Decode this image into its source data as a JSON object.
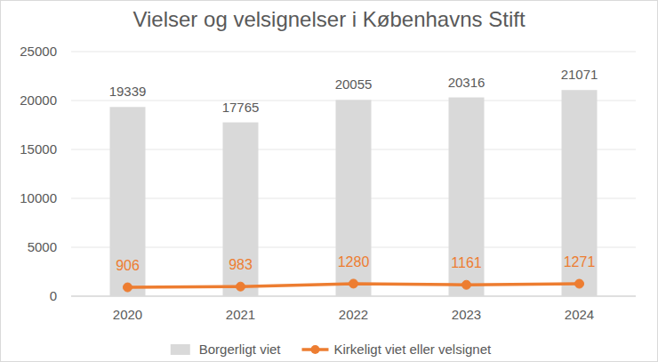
{
  "chart_data": {
    "type": "bar",
    "title": "Vielser og velsignelser i Københavns Stift",
    "categories": [
      "2020",
      "2021",
      "2022",
      "2023",
      "2024"
    ],
    "series": [
      {
        "name": "Borgerligt viet",
        "type": "bar",
        "color": "#d9d9d9",
        "values": [
          19339,
          17765,
          20055,
          20316,
          21071
        ]
      },
      {
        "name": "Kirkeligt viet eller velsignet",
        "type": "line",
        "color": "#ed7d31",
        "marker": "circle",
        "values": [
          906,
          983,
          1280,
          1161,
          1271
        ]
      }
    ],
    "ylim": [
      0,
      25000
    ],
    "yticks": [
      0,
      5000,
      10000,
      15000,
      20000,
      25000
    ],
    "grid": true,
    "legend": "bottom",
    "data_labels": true
  }
}
